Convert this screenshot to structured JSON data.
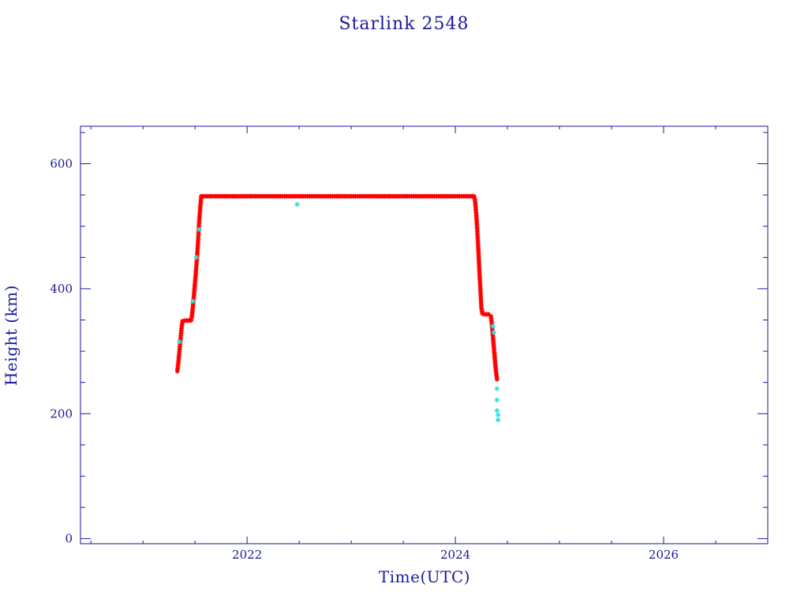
{
  "chart_data": {
    "type": "scatter",
    "title": "Starlink 2548",
    "xlabel": "Time(UTC)",
    "ylabel": "Height (km)",
    "xlim": [
      2020.4,
      2027.0
    ],
    "ylim": [
      -8,
      660
    ],
    "x_ticks": [
      2022,
      2024,
      2026
    ],
    "x_tick_labels": [
      "2022",
      "2024",
      "2026"
    ],
    "y_ticks": [
      0,
      200,
      400,
      600
    ],
    "y_tick_labels": [
      "0",
      "200",
      "400",
      "600"
    ],
    "grid": false,
    "legend": "none",
    "colors": {
      "axis": "#1a1a9a",
      "series": "#ff0000",
      "highlight": "#33e0e0",
      "line": "#404040"
    },
    "series": [
      {
        "style": "red-star",
        "points": [
          [
            2021.33,
            268
          ],
          [
            2021.34,
            282
          ],
          [
            2021.35,
            300
          ],
          [
            2021.36,
            318
          ],
          [
            2021.37,
            336
          ],
          [
            2021.38,
            348
          ],
          [
            2021.4,
            349
          ],
          [
            2021.42,
            349
          ],
          [
            2021.44,
            349
          ],
          [
            2021.46,
            349
          ],
          [
            2021.47,
            356
          ],
          [
            2021.48,
            372
          ],
          [
            2021.49,
            390
          ],
          [
            2021.5,
            410
          ],
          [
            2021.51,
            430
          ],
          [
            2021.52,
            452
          ],
          [
            2021.53,
            478
          ],
          [
            2021.54,
            508
          ],
          [
            2021.55,
            530
          ],
          [
            2021.56,
            548
          ],
          [
            2021.6,
            548
          ],
          [
            2021.7,
            548
          ],
          [
            2021.8,
            548
          ],
          [
            2021.9,
            548
          ],
          [
            2022.0,
            548
          ],
          [
            2022.1,
            548
          ],
          [
            2022.2,
            548
          ],
          [
            2022.3,
            548
          ],
          [
            2022.4,
            548
          ],
          [
            2022.5,
            548
          ],
          [
            2022.6,
            548
          ],
          [
            2022.7,
            548
          ],
          [
            2022.8,
            548
          ],
          [
            2022.9,
            548
          ],
          [
            2023.0,
            548
          ],
          [
            2023.1,
            548
          ],
          [
            2023.2,
            548
          ],
          [
            2023.3,
            548
          ],
          [
            2023.4,
            548
          ],
          [
            2023.5,
            548
          ],
          [
            2023.6,
            548
          ],
          [
            2023.7,
            548
          ],
          [
            2023.8,
            548
          ],
          [
            2023.9,
            548
          ],
          [
            2024.0,
            548
          ],
          [
            2024.1,
            548
          ],
          [
            2024.18,
            548
          ],
          [
            2024.19,
            540
          ],
          [
            2024.2,
            520
          ],
          [
            2024.21,
            495
          ],
          [
            2024.22,
            465
          ],
          [
            2024.23,
            430
          ],
          [
            2024.24,
            400
          ],
          [
            2024.25,
            370
          ],
          [
            2024.26,
            360
          ],
          [
            2024.28,
            359
          ],
          [
            2024.3,
            359
          ],
          [
            2024.32,
            359
          ],
          [
            2024.34,
            356
          ],
          [
            2024.35,
            345
          ],
          [
            2024.36,
            325
          ],
          [
            2024.37,
            305
          ],
          [
            2024.38,
            285
          ],
          [
            2024.39,
            268
          ],
          [
            2024.4,
            255
          ]
        ]
      },
      {
        "style": "cyan-star",
        "points": [
          [
            2021.35,
            315
          ],
          [
            2021.48,
            380
          ],
          [
            2021.51,
            450
          ],
          [
            2021.54,
            495
          ],
          [
            2022.48,
            535
          ],
          [
            2024.36,
            340
          ],
          [
            2024.37,
            330
          ],
          [
            2024.4,
            240
          ],
          [
            2024.4,
            222
          ],
          [
            2024.4,
            205
          ],
          [
            2024.41,
            198
          ],
          [
            2024.41,
            190
          ]
        ]
      }
    ]
  }
}
